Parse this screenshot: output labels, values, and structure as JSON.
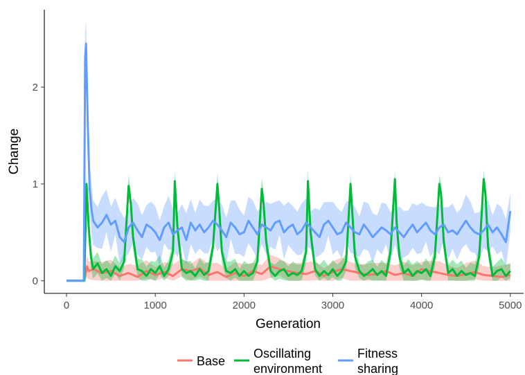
{
  "chart_data": {
    "type": "line",
    "title": "",
    "xlabel": "Generation",
    "ylabel": "Change",
    "xlim": [
      -250,
      5150
    ],
    "ylim": [
      -0.13,
      2.8
    ],
    "x_ticks": [
      0,
      1000,
      2000,
      3000,
      4000,
      5000
    ],
    "y_ticks": [
      0,
      1,
      2
    ],
    "grid": false,
    "legend_position": "bottom",
    "colors": {
      "Base": "#F8766D",
      "Oscillating environment": "#00BA38",
      "Fitness sharing": "#619CFF"
    },
    "series": [
      {
        "name": "Base",
        "x": [
          0,
          200,
          230,
          250,
          300,
          400,
          500,
          600,
          700,
          800,
          900,
          1000,
          1100,
          1200,
          1300,
          1400,
          1500,
          1600,
          1700,
          1800,
          1900,
          2000,
          2100,
          2200,
          2300,
          2400,
          2500,
          2600,
          2700,
          2800,
          2900,
          3000,
          3100,
          3200,
          3300,
          3400,
          3500,
          3600,
          3700,
          3800,
          3900,
          4000,
          4100,
          4200,
          4300,
          4400,
          4500,
          4600,
          4700,
          4800,
          4900,
          5000
        ],
        "y": [
          0,
          0,
          0.15,
          0.1,
          0.12,
          0.08,
          0.1,
          0.05,
          0.08,
          0.04,
          0.1,
          0.06,
          0.09,
          0.05,
          0.12,
          0.1,
          0.13,
          0.06,
          0.09,
          0.04,
          0.08,
          0.05,
          0.1,
          0.07,
          0.15,
          0.12,
          0.1,
          0.08,
          0.07,
          0.1,
          0.05,
          0.09,
          0.12,
          0.1,
          0.08,
          0.06,
          0.07,
          0.1,
          0.06,
          0.08,
          0.05,
          0.12,
          0.1,
          0.08,
          0.06,
          0.05,
          0.07,
          0.09,
          0.06,
          0.05,
          0.04,
          0.06
        ]
      },
      {
        "name": "Oscillating environment",
        "x": [
          0,
          200,
          225,
          250,
          275,
          300,
          350,
          400,
          450,
          500,
          550,
          600,
          650,
          700,
          725,
          750,
          800,
          850,
          900,
          950,
          1000,
          1050,
          1100,
          1150,
          1200,
          1220,
          1250,
          1300,
          1350,
          1400,
          1450,
          1500,
          1550,
          1600,
          1650,
          1700,
          1720,
          1750,
          1800,
          1850,
          1900,
          1950,
          2000,
          2050,
          2100,
          2150,
          2200,
          2220,
          2250,
          2300,
          2350,
          2400,
          2450,
          2500,
          2550,
          2600,
          2650,
          2700,
          2720,
          2750,
          2800,
          2850,
          2900,
          2950,
          3000,
          3050,
          3100,
          3150,
          3200,
          3220,
          3250,
          3300,
          3350,
          3400,
          3450,
          3500,
          3550,
          3600,
          3650,
          3700,
          3720,
          3750,
          3800,
          3850,
          3900,
          3950,
          4000,
          4050,
          4100,
          4150,
          4200,
          4220,
          4250,
          4300,
          4350,
          4400,
          4450,
          4500,
          4550,
          4600,
          4650,
          4700,
          4720,
          4750,
          4800,
          4850,
          4900,
          4950,
          5000
        ],
        "y": [
          0,
          0,
          1.0,
          0.55,
          0.25,
          0.12,
          0.18,
          0.08,
          0.12,
          0.05,
          0.15,
          0.1,
          0.2,
          0.98,
          0.8,
          0.45,
          0.12,
          0.1,
          0.05,
          0.12,
          0.08,
          0.15,
          0.05,
          0.12,
          0.3,
          1.03,
          0.55,
          0.12,
          0.08,
          0.1,
          0.05,
          0.12,
          0.06,
          0.1,
          0.35,
          1.0,
          0.75,
          0.3,
          0.1,
          0.08,
          0.12,
          0.05,
          0.1,
          0.05,
          0.08,
          0.2,
          0.95,
          0.8,
          0.4,
          0.1,
          0.05,
          0.1,
          0.12,
          0.05,
          0.08,
          0.06,
          0.1,
          0.3,
          1.03,
          0.5,
          0.12,
          0.05,
          0.1,
          0.06,
          0.12,
          0.05,
          0.1,
          0.2,
          1.0,
          0.7,
          0.25,
          0.1,
          0.05,
          0.08,
          0.12,
          0.06,
          0.1,
          0.05,
          0.3,
          1.05,
          0.6,
          0.25,
          0.08,
          0.12,
          0.05,
          0.1,
          0.08,
          0.12,
          0.05,
          0.25,
          1.0,
          0.9,
          0.4,
          0.08,
          0.12,
          0.05,
          0.1,
          0.06,
          0.08,
          0.05,
          0.25,
          1.05,
          0.9,
          0.35,
          0.05,
          0.1,
          0.12,
          0.05,
          0.1
        ]
      },
      {
        "name": "Fitness sharing",
        "x": [
          0,
          195,
          210,
          220,
          240,
          260,
          280,
          300,
          350,
          400,
          450,
          500,
          550,
          600,
          650,
          700,
          750,
          800,
          850,
          900,
          950,
          1000,
          1050,
          1100,
          1150,
          1200,
          1250,
          1300,
          1350,
          1400,
          1450,
          1500,
          1550,
          1600,
          1650,
          1700,
          1750,
          1800,
          1850,
          1900,
          1950,
          2000,
          2050,
          2100,
          2150,
          2200,
          2250,
          2300,
          2350,
          2400,
          2450,
          2500,
          2550,
          2600,
          2650,
          2700,
          2750,
          2800,
          2850,
          2900,
          2950,
          3000,
          3050,
          3100,
          3150,
          3200,
          3250,
          3300,
          3350,
          3400,
          3450,
          3500,
          3550,
          3600,
          3650,
          3700,
          3750,
          3800,
          3850,
          3900,
          3950,
          4000,
          4050,
          4100,
          4150,
          4200,
          4250,
          4300,
          4350,
          4400,
          4450,
          4500,
          4550,
          4600,
          4650,
          4700,
          4750,
          4800,
          4850,
          4900,
          4950,
          5000
        ],
        "y": [
          0,
          0,
          2.3,
          2.45,
          1.6,
          0.95,
          0.75,
          0.62,
          0.55,
          0.6,
          0.68,
          0.58,
          0.62,
          0.45,
          0.4,
          0.55,
          0.6,
          0.52,
          0.45,
          0.58,
          0.55,
          0.5,
          0.42,
          0.55,
          0.6,
          0.48,
          0.52,
          0.55,
          0.42,
          0.6,
          0.52,
          0.58,
          0.5,
          0.55,
          0.62,
          0.58,
          0.52,
          0.45,
          0.6,
          0.55,
          0.48,
          0.5,
          0.62,
          0.55,
          0.48,
          0.58,
          0.55,
          0.52,
          0.6,
          0.62,
          0.5,
          0.55,
          0.58,
          0.48,
          0.52,
          0.6,
          0.55,
          0.5,
          0.45,
          0.58,
          0.62,
          0.55,
          0.48,
          0.5,
          0.6,
          0.55,
          0.5,
          0.48,
          0.58,
          0.52,
          0.45,
          0.5,
          0.55,
          0.52,
          0.48,
          0.55,
          0.5,
          0.45,
          0.52,
          0.58,
          0.5,
          0.55,
          0.6,
          0.52,
          0.48,
          0.55,
          0.58,
          0.5,
          0.52,
          0.48,
          0.55,
          0.62,
          0.55,
          0.5,
          0.48,
          0.52,
          0.58,
          0.5,
          0.55,
          0.48,
          0.4,
          0.72
        ]
      }
    ]
  },
  "legend": {
    "items": [
      {
        "key": "Base",
        "lines": [
          "Base"
        ]
      },
      {
        "key": "Oscillating environment",
        "lines": [
          "Oscillating",
          "environment"
        ]
      },
      {
        "key": "Fitness sharing",
        "lines": [
          "Fitness",
          "sharing"
        ]
      }
    ]
  }
}
